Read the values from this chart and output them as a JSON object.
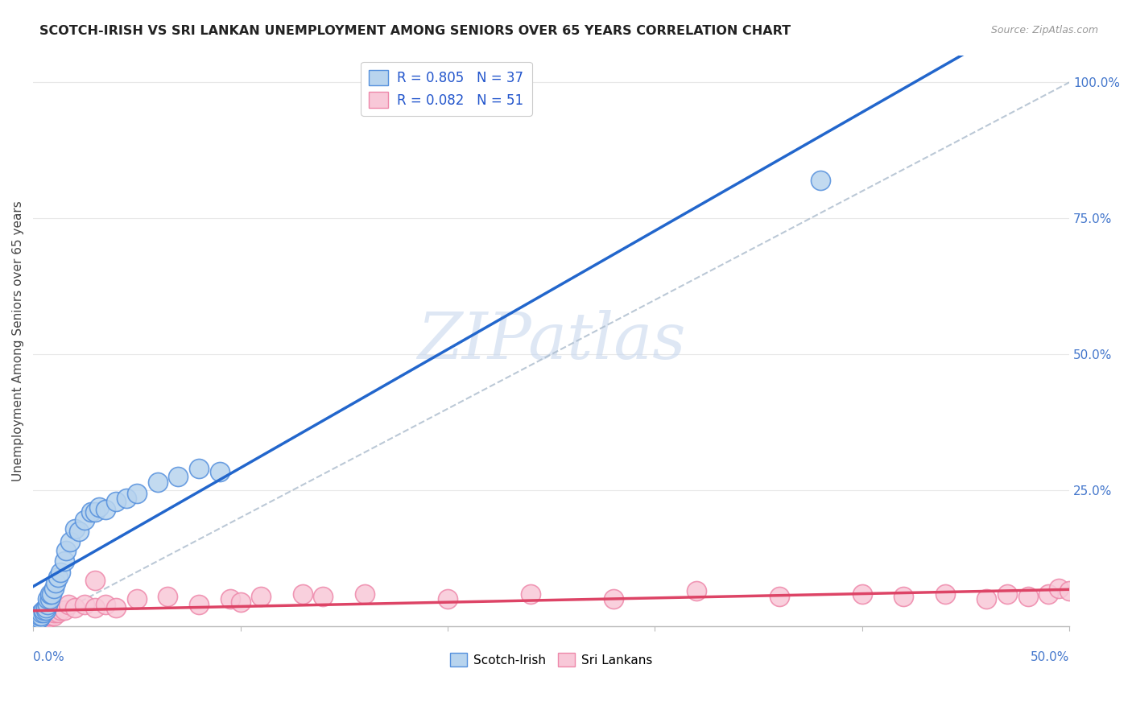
{
  "title": "SCOTCH-IRISH VS SRI LANKAN UNEMPLOYMENT AMONG SENIORS OVER 65 YEARS CORRELATION CHART",
  "source": "Source: ZipAtlas.com",
  "ylabel": "Unemployment Among Seniors over 65 years",
  "legend_label1": "Scotch-Irish",
  "legend_label2": "Sri Lankans",
  "r1": 0.805,
  "n1": 37,
  "r2": 0.082,
  "n2": 51,
  "color1": "#b8d4ee",
  "color1_line": "#2266cc",
  "color1_edge": "#5590dd",
  "color2": "#f8c8d8",
  "color2_line": "#dd4466",
  "color2_edge": "#ee88aa",
  "watermark_color": "#c8d8ee",
  "xlim": [
    0.0,
    0.5
  ],
  "ylim": [
    0.0,
    1.05
  ],
  "scotch_irish_x": [
    0.001,
    0.002,
    0.003,
    0.003,
    0.004,
    0.004,
    0.005,
    0.005,
    0.006,
    0.006,
    0.007,
    0.007,
    0.008,
    0.008,
    0.009,
    0.01,
    0.011,
    0.012,
    0.013,
    0.015,
    0.016,
    0.018,
    0.02,
    0.022,
    0.025,
    0.028,
    0.03,
    0.032,
    0.035,
    0.04,
    0.045,
    0.05,
    0.06,
    0.07,
    0.08,
    0.09,
    0.38
  ],
  "scotch_irish_y": [
    0.01,
    0.01,
    0.015,
    0.02,
    0.02,
    0.025,
    0.025,
    0.03,
    0.03,
    0.035,
    0.04,
    0.05,
    0.05,
    0.06,
    0.06,
    0.07,
    0.08,
    0.09,
    0.1,
    0.12,
    0.14,
    0.155,
    0.18,
    0.175,
    0.195,
    0.21,
    0.21,
    0.22,
    0.215,
    0.23,
    0.235,
    0.245,
    0.265,
    0.275,
    0.29,
    0.285,
    0.82
  ],
  "sri_lankan_x": [
    0.001,
    0.002,
    0.002,
    0.003,
    0.003,
    0.004,
    0.005,
    0.005,
    0.006,
    0.006,
    0.007,
    0.007,
    0.008,
    0.008,
    0.009,
    0.01,
    0.01,
    0.011,
    0.012,
    0.013,
    0.015,
    0.017,
    0.02,
    0.025,
    0.03,
    0.03,
    0.035,
    0.04,
    0.05,
    0.065,
    0.08,
    0.095,
    0.1,
    0.11,
    0.13,
    0.14,
    0.16,
    0.2,
    0.24,
    0.28,
    0.32,
    0.36,
    0.4,
    0.42,
    0.44,
    0.46,
    0.47,
    0.48,
    0.49,
    0.495,
    0.5
  ],
  "sri_lankan_y": [
    0.01,
    0.005,
    0.015,
    0.01,
    0.02,
    0.01,
    0.015,
    0.02,
    0.015,
    0.025,
    0.015,
    0.02,
    0.02,
    0.025,
    0.025,
    0.02,
    0.025,
    0.03,
    0.025,
    0.03,
    0.03,
    0.04,
    0.035,
    0.04,
    0.035,
    0.085,
    0.04,
    0.035,
    0.05,
    0.055,
    0.04,
    0.05,
    0.045,
    0.055,
    0.06,
    0.055,
    0.06,
    0.05,
    0.06,
    0.05,
    0.065,
    0.055,
    0.06,
    0.055,
    0.06,
    0.05,
    0.06,
    0.055,
    0.06,
    0.07,
    0.065
  ]
}
